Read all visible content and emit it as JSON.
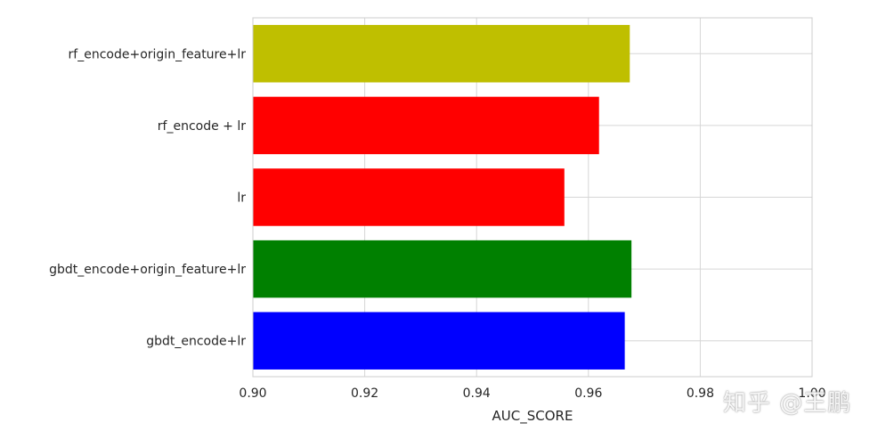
{
  "chart_data": {
    "type": "bar",
    "orientation": "horizontal",
    "categories": [
      "gbdt_encode+lr",
      "gbdt_encode+origin_feature+lr",
      "lr",
      "rf_encode + lr",
      "rf_encode+origin_feature+lr"
    ],
    "values": [
      0.9665,
      0.9677,
      0.9557,
      0.9619,
      0.9674
    ],
    "bar_colors": [
      "#0000ff",
      "#008000",
      "#ff0000",
      "#ff0000",
      "#bfbf00"
    ],
    "xlabel": "AUC_SCORE",
    "ylabel": "",
    "title": "",
    "xlim": [
      0.9,
      1.0
    ],
    "xticks": [
      0.9,
      0.92,
      0.94,
      0.96,
      0.98,
      1.0
    ],
    "xtick_labels": [
      "0.90",
      "0.92",
      "0.94",
      "0.96",
      "0.98",
      "1.00"
    ],
    "grid": true
  },
  "watermark": "知乎 @王鹏"
}
